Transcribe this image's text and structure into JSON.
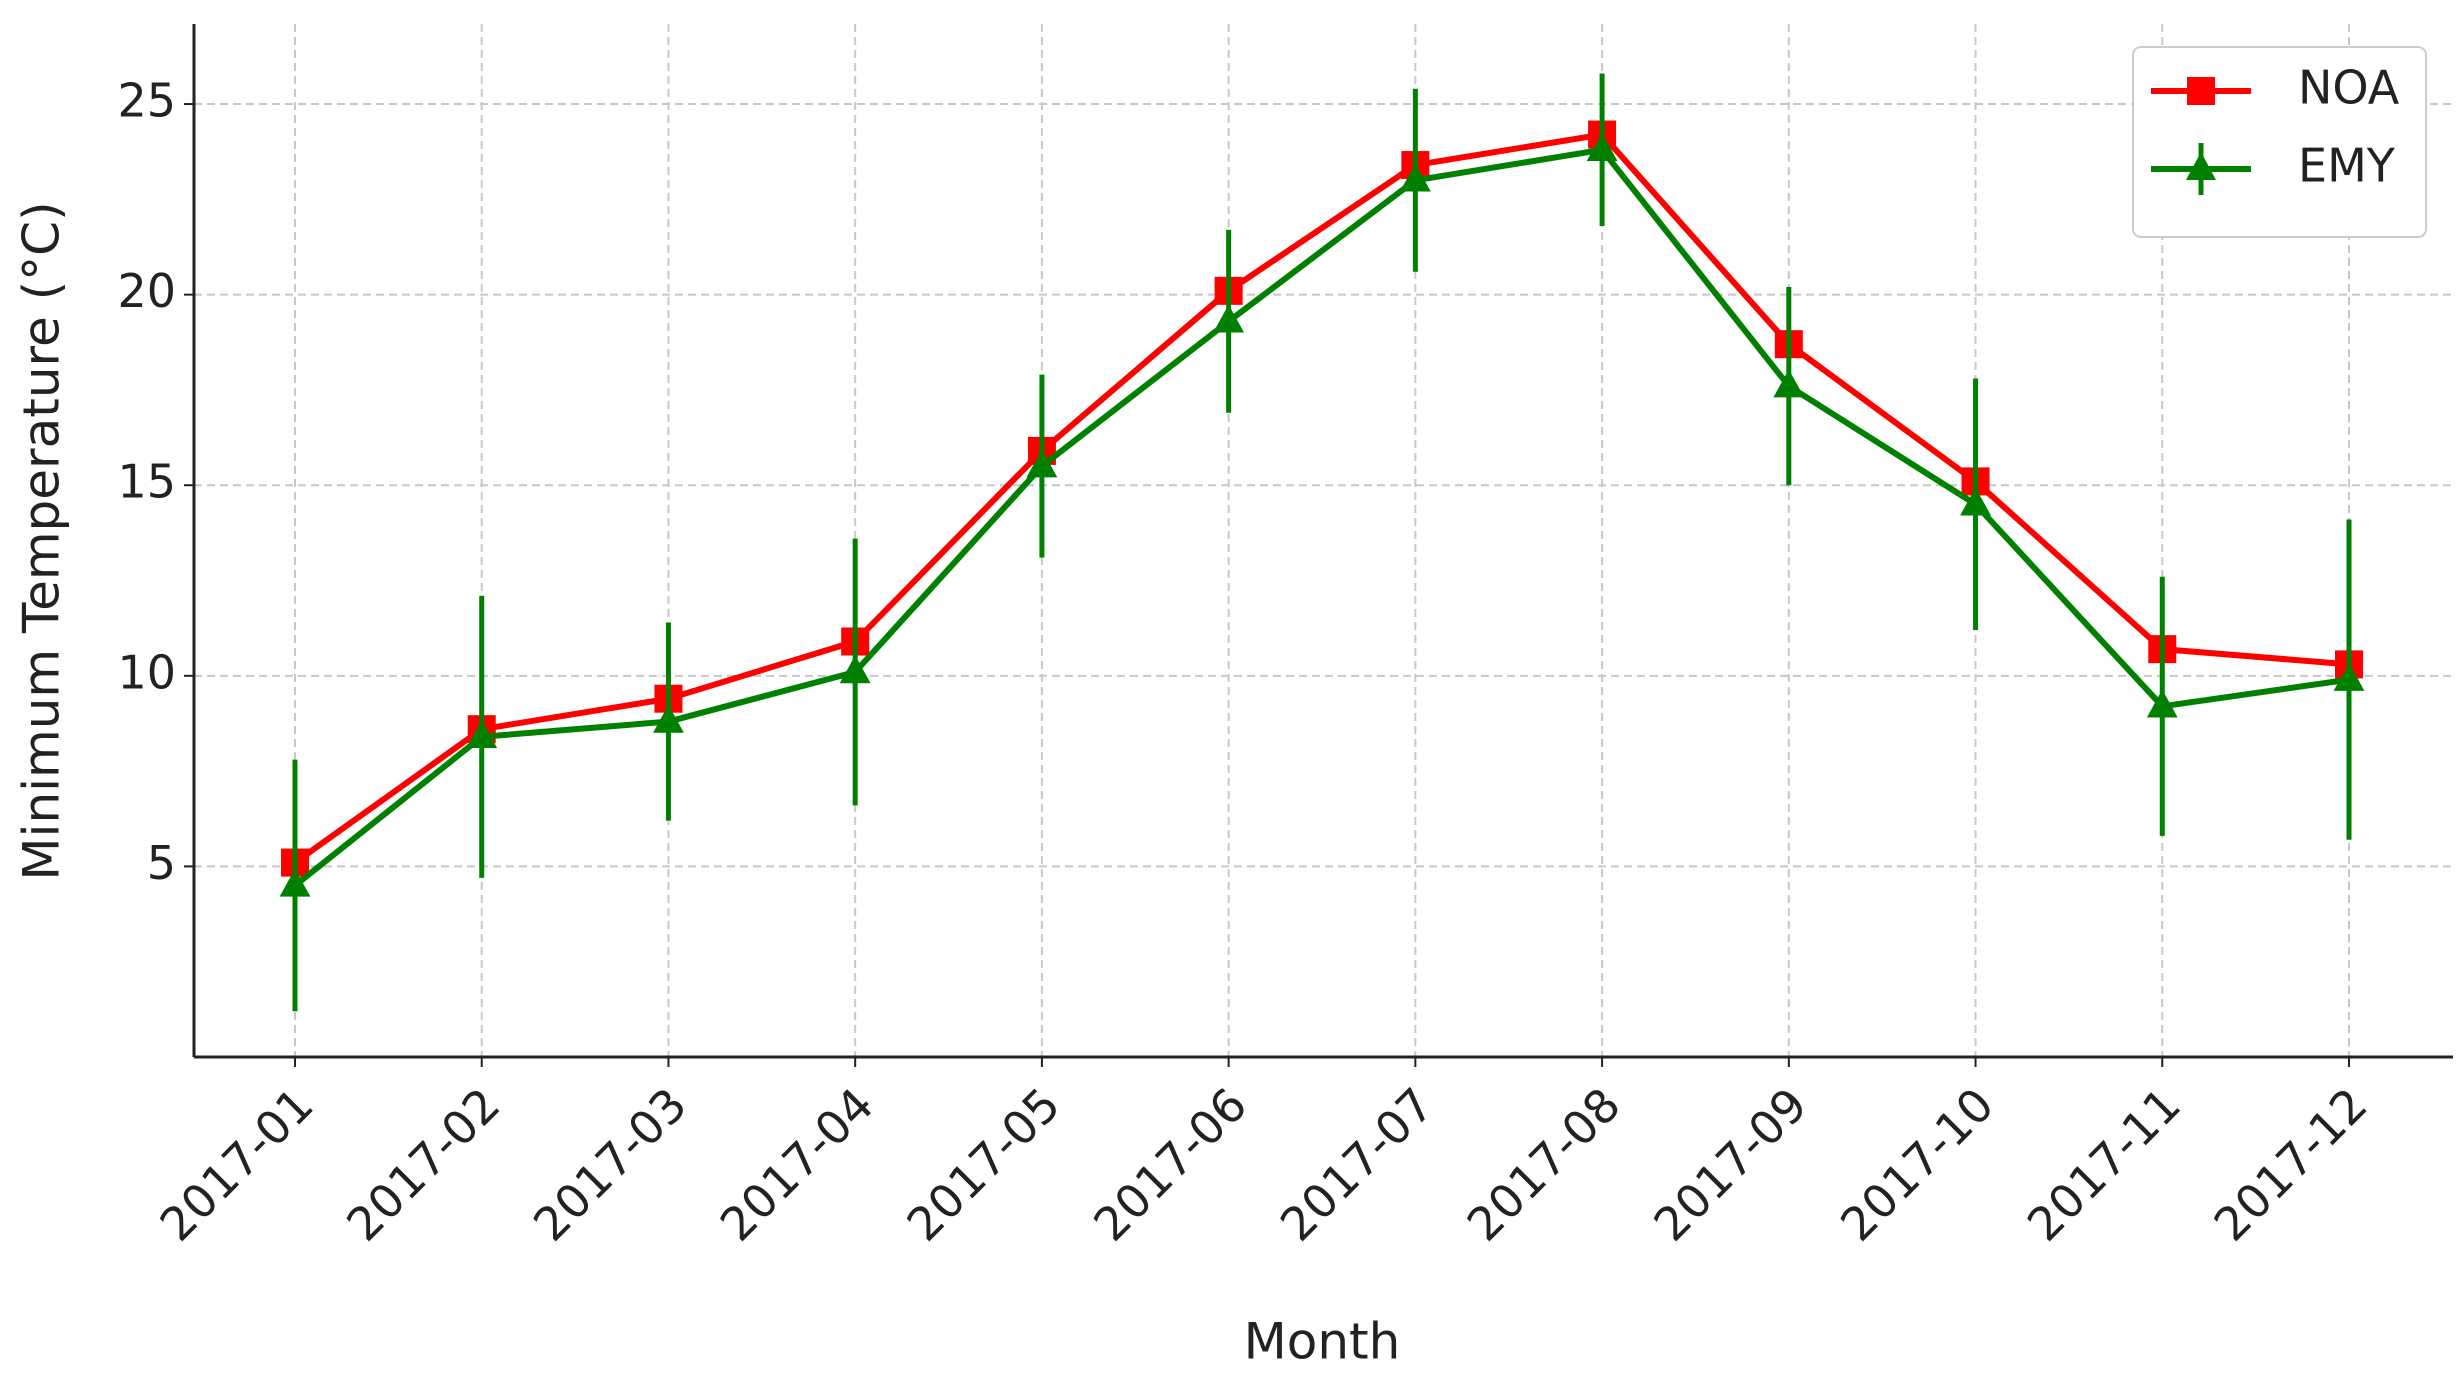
{
  "chart_data": {
    "type": "line",
    "x_label": "Month",
    "y_label": "Minimum Temperature (°C)",
    "categories": [
      "2017-01",
      "2017-02",
      "2017-03",
      "2017-04",
      "2017-05",
      "2017-06",
      "2017-07",
      "2017-08",
      "2017-09",
      "2017-10",
      "2017-11",
      "2017-12"
    ],
    "series": [
      {
        "name": "NOA",
        "color": "#ff0000",
        "marker": "square",
        "values": [
          5.1,
          8.6,
          9.4,
          10.9,
          15.9,
          20.1,
          23.4,
          24.2,
          18.7,
          15.1,
          10.7,
          10.3
        ]
      },
      {
        "name": "EMY",
        "color": "#008000",
        "marker": "triangle",
        "values": [
          4.5,
          8.4,
          8.8,
          10.1,
          15.5,
          19.3,
          23.0,
          23.8,
          17.6,
          14.5,
          9.2,
          9.9
        ],
        "errors": [
          3.3,
          3.7,
          2.6,
          3.5,
          2.4,
          2.4,
          2.4,
          2.0,
          2.6,
          3.3,
          3.4,
          4.2
        ]
      }
    ],
    "ylim": [
      0,
      27.1
    ],
    "yticks": [
      5,
      10,
      15,
      20,
      25
    ],
    "grid": true,
    "legend": "upper right"
  }
}
